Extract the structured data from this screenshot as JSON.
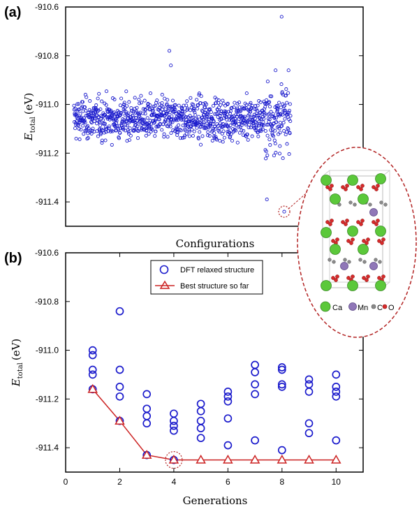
{
  "chart_data": [
    {
      "panel_label": "(a)",
      "type": "scatter",
      "xlabel": "Configurations",
      "ylabel_main": "E",
      "ylabel_sub": "total",
      "ylabel_unit": "(eV)",
      "ylim": [
        -911.5,
        -910.6
      ],
      "yticks": [
        "-910.6",
        "-910.8",
        "-911.0",
        "-911.2",
        "-911.4"
      ],
      "ytick_values": [
        -910.6,
        -910.8,
        -911.0,
        -911.2,
        -911.4
      ],
      "point_count": 1000,
      "point_distribution": {
        "center": -911.06,
        "spread": 0.07,
        "outliers": [
          {
            "index": 958,
            "value": -910.64
          },
          {
            "index": 440,
            "value": -910.78
          },
          {
            "index": 447,
            "value": -910.84
          },
          {
            "index": 930,
            "value": -910.86
          },
          {
            "index": 990,
            "value": -910.86
          },
          {
            "index": 890,
            "value": -911.39
          },
          {
            "index": 970,
            "value": -911.44
          }
        ]
      },
      "highlight": {
        "index": 970,
        "value": -911.44
      },
      "marker_color": "#1a1acc"
    },
    {
      "panel_label": "(b)",
      "type": "scatter",
      "xlabel": "Generations",
      "ylabel_main": "E",
      "ylabel_sub": "total",
      "ylabel_unit": "(eV)",
      "xlim": [
        0,
        11
      ],
      "ylim": [
        -911.5,
        -910.6
      ],
      "xticks": [
        "0",
        "2",
        "4",
        "6",
        "8",
        "10"
      ],
      "xtick_values": [
        0,
        2,
        4,
        6,
        8,
        10
      ],
      "yticks": [
        "-910.6",
        "-910.8",
        "-911.0",
        "-911.2",
        "-911.4"
      ],
      "ytick_values": [
        -910.6,
        -910.8,
        -911.0,
        -911.2,
        -911.4
      ],
      "legend": {
        "position": "top-center",
        "entries": [
          "DFT relaxed structure",
          "Best structure so far"
        ]
      },
      "series": [
        {
          "name": "DFT relaxed structure",
          "marker": "circle",
          "color": "#1a1acc",
          "points": [
            [
              1,
              -911.0
            ],
            [
              1,
              -911.02
            ],
            [
              1,
              -911.08
            ],
            [
              1,
              -911.1
            ],
            [
              1,
              -911.16
            ],
            [
              2,
              -910.84
            ],
            [
              2,
              -911.08
            ],
            [
              2,
              -911.15
            ],
            [
              2,
              -911.19
            ],
            [
              2,
              -911.29
            ],
            [
              3,
              -911.18
            ],
            [
              3,
              -911.24
            ],
            [
              3,
              -911.27
            ],
            [
              3,
              -911.3
            ],
            [
              3,
              -911.43
            ],
            [
              4,
              -911.26
            ],
            [
              4,
              -911.29
            ],
            [
              4,
              -911.31
            ],
            [
              4,
              -911.33
            ],
            [
              4,
              -911.45
            ],
            [
              5,
              -911.22
            ],
            [
              5,
              -911.25
            ],
            [
              5,
              -911.29
            ],
            [
              5,
              -911.32
            ],
            [
              5,
              -911.36
            ],
            [
              6,
              -911.17
            ],
            [
              6,
              -911.19
            ],
            [
              6,
              -911.21
            ],
            [
              6,
              -911.28
            ],
            [
              6,
              -911.39
            ],
            [
              7,
              -911.06
            ],
            [
              7,
              -911.09
            ],
            [
              7,
              -911.14
            ],
            [
              7,
              -911.18
            ],
            [
              7,
              -911.37
            ],
            [
              8,
              -911.07
            ],
            [
              8,
              -911.08
            ],
            [
              8,
              -911.14
            ],
            [
              8,
              -911.15
            ],
            [
              8,
              -911.41
            ],
            [
              9,
              -911.12
            ],
            [
              9,
              -911.14
            ],
            [
              9,
              -911.17
            ],
            [
              9,
              -911.3
            ],
            [
              9,
              -911.34
            ],
            [
              10,
              -911.1
            ],
            [
              10,
              -911.15
            ],
            [
              10,
              -911.17
            ],
            [
              10,
              -911.19
            ],
            [
              10,
              -911.37
            ]
          ]
        },
        {
          "name": "Best structure so far",
          "marker": "triangle",
          "color": "#cc2222",
          "x": [
            1,
            2,
            3,
            4,
            5,
            6,
            7,
            8,
            9,
            10
          ],
          "y": [
            -911.16,
            -911.29,
            -911.43,
            -911.45,
            -911.45,
            -911.45,
            -911.45,
            -911.45,
            -911.45,
            -911.45
          ]
        }
      ],
      "highlight": {
        "x": 4,
        "y": -911.45
      }
    }
  ],
  "inset": {
    "description_labels": [
      "Ca",
      "Mn",
      "C",
      "O"
    ],
    "colors": {
      "Ca": "#5bc83a",
      "Mn": "#9077b8",
      "C": "#8a8a8a",
      "O": "#d62a2a"
    }
  }
}
